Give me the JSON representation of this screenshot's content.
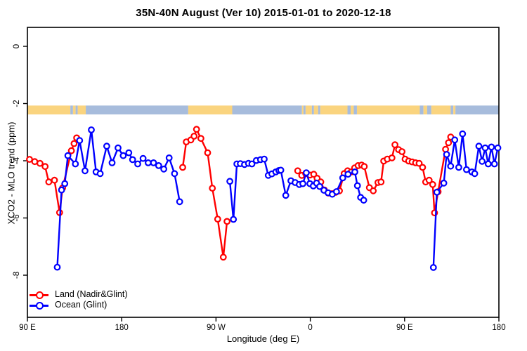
{
  "title": "35N-40N August (Ver 10)   2015-01-01 to 2020-12-18",
  "chart_data": {
    "type": "line",
    "title": "35N-40N August (Ver 10)   2015-01-01 to 2020-12-18",
    "xlabel": "Longitude (deg E)",
    "ylabel": "XCO2 - MLO trend (ppm)",
    "x_unit_note": "x is degrees along axis starting at 90E, wrapping eastward 90E>180>90W>0>90E>180 (0..450)",
    "x_axis": {
      "range": [
        0,
        450
      ],
      "tick_positions": [
        0,
        90,
        180,
        270,
        360,
        450
      ],
      "tick_labels": [
        "90 E",
        "180",
        "90 W",
        "0",
        "90 E",
        "180"
      ]
    },
    "y_axis": {
      "range": [
        0.66,
        -9.47
      ],
      "tick_positions": [
        0,
        -2,
        -4,
        -6,
        -8
      ],
      "tick_labels": [
        "0",
        "-2",
        "-4",
        "-6",
        "-8"
      ]
    },
    "grid": "off",
    "legend_position": "bottom-left",
    "map_band": {
      "y_top": -2.07,
      "y_bottom": -2.38,
      "land_color": "#FAD47F",
      "ocean_color": "#A7BCDC",
      "segments": [
        [
          0,
          41,
          "land"
        ],
        [
          41,
          43.5,
          "ocean"
        ],
        [
          43.5,
          46,
          "land"
        ],
        [
          46,
          48,
          "ocean"
        ],
        [
          48,
          55.7,
          "land"
        ],
        [
          55.7,
          153.5,
          "ocean"
        ],
        [
          153.5,
          195.5,
          "land"
        ],
        [
          195.5,
          262,
          "ocean"
        ],
        [
          262,
          263.5,
          "land"
        ],
        [
          263.5,
          265.5,
          "ocean"
        ],
        [
          265.5,
          271.5,
          "land"
        ],
        [
          271.5,
          273.5,
          "ocean"
        ],
        [
          273.5,
          277.5,
          "land"
        ],
        [
          277.5,
          279.5,
          "ocean"
        ],
        [
          279.5,
          305.5,
          "land"
        ],
        [
          305.5,
          308.5,
          "ocean"
        ],
        [
          308.5,
          311.5,
          "land"
        ],
        [
          311.5,
          314.5,
          "ocean"
        ],
        [
          314.5,
          374.5,
          "land"
        ],
        [
          374.5,
          378,
          "ocean"
        ],
        [
          378,
          381.5,
          "land"
        ],
        [
          381.5,
          385.5,
          "ocean"
        ],
        [
          385.5,
          404,
          "land"
        ],
        [
          404,
          406.5,
          "ocean"
        ],
        [
          406.5,
          408.5,
          "land"
        ],
        [
          408.5,
          450,
          "ocean"
        ]
      ]
    },
    "series": [
      {
        "name": "Land (Nadir&Glint)",
        "color": "#FF0000",
        "marker": "open-circle",
        "segments": [
          [
            [
              2,
              -3.95
            ],
            [
              7,
              -4.03
            ],
            [
              12,
              -4.09
            ],
            [
              16.9,
              -4.2
            ],
            [
              20.4,
              -4.74
            ],
            [
              25.8,
              -4.68
            ],
            [
              30.7,
              -5.81
            ],
            [
              33.6,
              -4.95
            ],
            [
              42,
              -3.65
            ],
            [
              44.5,
              -3.4
            ],
            [
              47,
              -3.2
            ]
          ],
          [
            [
              148.2,
              -4.23
            ],
            [
              151.6,
              -3.34
            ],
            [
              156,
              -3.27
            ],
            [
              159.1,
              -3.14
            ],
            [
              161.4,
              -2.9
            ],
            [
              165.6,
              -3.22
            ],
            [
              172,
              -3.72
            ],
            [
              176.5,
              -4.96
            ],
            [
              181.6,
              -6.04
            ],
            [
              187,
              -7.37
            ],
            [
              190.5,
              -6.12
            ]
          ],
          [
            [
              258,
              -4.35
            ],
            [
              261.8,
              -4.51
            ],
            [
              265.6,
              -4.45
            ],
            [
              269.6,
              -4.5
            ],
            [
              273.3,
              -4.47
            ],
            [
              276.5,
              -4.61
            ],
            [
              280,
              -4.74
            ],
            [
              283.4,
              -5.02
            ],
            [
              287.2,
              -5.13
            ],
            [
              290.7,
              -5.15
            ],
            [
              294.4,
              -5.1
            ],
            [
              297.8,
              -5.05
            ],
            [
              302.3,
              -4.45
            ],
            [
              305.6,
              -4.35
            ],
            [
              309,
              -4.39
            ],
            [
              312.3,
              -4.25
            ],
            [
              315.7,
              -4.17
            ],
            [
              319,
              -4.15
            ],
            [
              321.5,
              -4.2
            ],
            [
              326.4,
              -4.94
            ],
            [
              330.1,
              -5.05
            ],
            [
              334.6,
              -4.76
            ],
            [
              337.5,
              -4.74
            ],
            [
              340.1,
              -4.01
            ],
            [
              343.5,
              -3.94
            ],
            [
              347.9,
              -3.9
            ],
            [
              350.8,
              -3.44
            ],
            [
              354.2,
              -3.61
            ],
            [
              357.5,
              -3.68
            ],
            [
              360.5,
              -3.94
            ],
            [
              363.9,
              -4.01
            ],
            [
              367.2,
              -4.04
            ],
            [
              370.5,
              -4.07
            ],
            [
              373.9,
              -4.09
            ],
            [
              377.2,
              -4.23
            ],
            [
              380.1,
              -4.74
            ],
            [
              383.4,
              -4.68
            ],
            [
              386.8,
              -4.83
            ],
            [
              388.6,
              -5.82
            ],
            [
              392,
              -5.08
            ],
            [
              399.1,
              -3.6
            ],
            [
              401.9,
              -3.37
            ],
            [
              404,
              -3.17
            ]
          ]
        ]
      },
      {
        "name": "Ocean (Glint)",
        "color": "#0000FF",
        "marker": "open-circle",
        "segments": [
          [
            [
              28.5,
              -7.72
            ],
            [
              32.6,
              -5.02
            ],
            [
              35.7,
              -4.8
            ],
            [
              38.6,
              -3.82
            ],
            [
              45.8,
              -4.11
            ],
            [
              49.8,
              -3.29
            ],
            [
              55,
              -4.35
            ],
            [
              61,
              -2.92
            ],
            [
              65.5,
              -4.39
            ],
            [
              69.5,
              -4.45
            ],
            [
              75.7,
              -3.49
            ],
            [
              80.8,
              -4.07
            ],
            [
              86.5,
              -3.55
            ],
            [
              91.5,
              -3.82
            ],
            [
              96.8,
              -3.72
            ],
            [
              100.4,
              -3.96
            ],
            [
              105.3,
              -4.11
            ],
            [
              110.4,
              -3.92
            ],
            [
              115.3,
              -4.07
            ],
            [
              120.4,
              -4.07
            ],
            [
              125.3,
              -4.17
            ],
            [
              130.2,
              -4.29
            ],
            [
              135.3,
              -3.9
            ],
            [
              140.4,
              -4.45
            ],
            [
              145.3,
              -5.43
            ]
          ],
          [
            [
              193.2,
              -4.72
            ],
            [
              196.6,
              -6.05
            ],
            [
              199.9,
              -4.11
            ],
            [
              203.2,
              -4.1
            ],
            [
              207.2,
              -4.13
            ],
            [
              211,
              -4.09
            ],
            [
              214.3,
              -4.11
            ],
            [
              218.5,
              -3.99
            ],
            [
              222.5,
              -3.96
            ],
            [
              226,
              -3.94
            ],
            [
              229.9,
              -4.51
            ],
            [
              233.3,
              -4.46
            ],
            [
              237.1,
              -4.39
            ],
            [
              240,
              -4.34
            ],
            [
              241.8,
              -4.33
            ],
            [
              246.6,
              -5.21
            ],
            [
              251.5,
              -4.7
            ],
            [
              255.5,
              -4.76
            ],
            [
              259.5,
              -4.83
            ]
          ],
          [
            [
              262.9,
              -4.8
            ],
            [
              266.2,
              -4.42
            ],
            [
              269.6,
              -4.8
            ],
            [
              272.9,
              -4.88
            ],
            [
              276,
              -4.78
            ],
            [
              279,
              -4.9
            ],
            [
              283,
              -5.03
            ],
            [
              287,
              -5.12
            ],
            [
              291,
              -5.17
            ],
            [
              295,
              -5.08
            ],
            [
              301,
              -4.6
            ],
            [
              306,
              -4.47
            ],
            [
              312.5,
              -4.39
            ],
            [
              315,
              -4.87
            ],
            [
              318,
              -5.28
            ],
            [
              321,
              -5.38
            ]
          ],
          [
            [
              387.5,
              -7.73
            ],
            [
              390.8,
              -5.1
            ],
            [
              397.4,
              -4.78
            ],
            [
              400.1,
              -3.78
            ],
            [
              403.9,
              -4.19
            ],
            [
              407.9,
              -3.27
            ],
            [
              411.7,
              -4.23
            ],
            [
              415.3,
              -3.06
            ],
            [
              419.1,
              -4.31
            ],
            [
              424.2,
              -4.39
            ],
            [
              426.9,
              -4.45
            ],
            [
              430.9,
              -3.49
            ],
            [
              434,
              -4.02
            ],
            [
              436.9,
              -3.55
            ],
            [
              439.8,
              -4.11
            ],
            [
              442.9,
              -3.52
            ],
            [
              445.8,
              -4.11
            ],
            [
              449,
              -3.55
            ]
          ]
        ]
      }
    ]
  },
  "legend": {
    "land_label": "Land (Nadir&Glint)",
    "ocean_label": "Ocean (Glint)"
  },
  "colors": {
    "land_series": "#FF0000",
    "ocean_series": "#0000FF",
    "axis": "#000000",
    "background": "#FFFFFF"
  }
}
